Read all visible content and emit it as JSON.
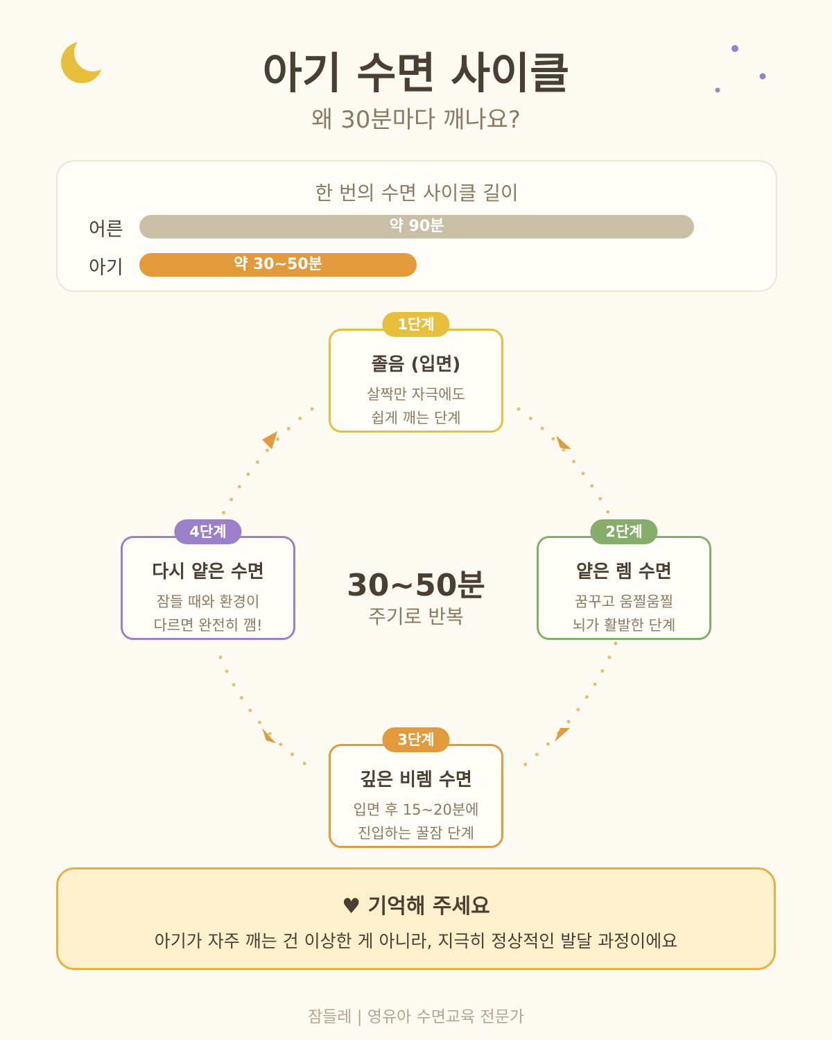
{
  "header": {
    "title": "아기 수면 사이클",
    "subtitle": "왜 30분마다 깨나요?"
  },
  "comparison": {
    "title": "한 번의 수면 사이클 길이",
    "rows": [
      {
        "label": "어른",
        "bar": "약 90분"
      },
      {
        "label": "아기",
        "bar": "약 30~50분"
      }
    ]
  },
  "center": {
    "main": "30~50분",
    "sub": "주기로 반복"
  },
  "stages": [
    {
      "badge": "1단계",
      "title": "졸음 (입면)",
      "lines": [
        "살짝만 자극에도",
        "쉽게 깨는 단계"
      ]
    },
    {
      "badge": "2단계",
      "title": "얕은 렘 수면",
      "lines": [
        "꿈꾸고 움찔움찔",
        "뇌가 활발한 단계"
      ]
    },
    {
      "badge": "3단계",
      "title": "깊은 비렘 수면",
      "lines": [
        "입면 후 15~20분에",
        "진입하는 꿀잠 단계"
      ]
    },
    {
      "badge": "4단계",
      "title": "다시 얕은 수면",
      "lines": [
        "잠들 때와 환경이",
        "다르면 완전히 깸!"
      ]
    }
  ],
  "note": {
    "title": "♥ 기억해 주세요",
    "text": "아기가 자주 깨는 건 이상한 게 아니라, 지극히 정상적인 발달 과정이에요"
  },
  "footer": "잠들레 | 영유아 수면교육 전문가"
}
